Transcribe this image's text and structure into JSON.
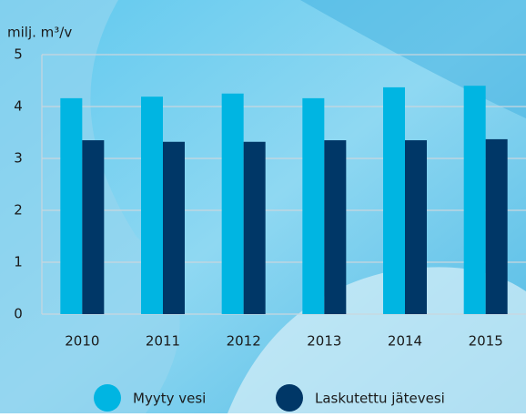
{
  "chart_data": {
    "type": "bar",
    "title": "milj. m³/v",
    "categories": [
      "2010",
      "2011",
      "2012",
      "2013",
      "2014",
      "2015"
    ],
    "series": [
      {
        "name": "Myyty vesi",
        "color": "#00b5e2",
        "values": [
          4.16,
          4.19,
          4.25,
          4.16,
          4.37,
          4.4
        ]
      },
      {
        "name": "Laskutettu jätevesi",
        "color": "#003767",
        "values": [
          3.35,
          3.32,
          3.32,
          3.35,
          3.35,
          3.37
        ]
      }
    ],
    "ylim": [
      0,
      5
    ],
    "yticks": [
      0,
      1,
      2,
      3,
      4,
      5
    ],
    "grid": true
  }
}
